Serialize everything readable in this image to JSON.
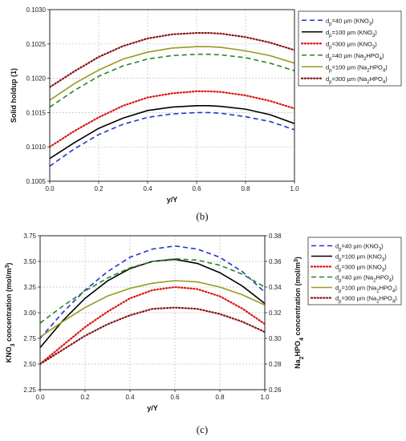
{
  "chart_data": [
    {
      "type": "line",
      "panel_label": "(b)",
      "xlabel": "y/Y",
      "ylabel": "Solid holdup (1)",
      "xlim": [
        0.0,
        1.0
      ],
      "ylim": [
        0.1005,
        0.103
      ],
      "x_ticks": [
        "0.0",
        "0.2",
        "0.4",
        "0.6",
        "0.8",
        "1.0"
      ],
      "y_ticks": [
        "0.1005",
        "0.1010",
        "0.1015",
        "0.1020",
        "0.1025",
        "0.1030"
      ],
      "grid": true,
      "legend_position": "right",
      "series": [
        {
          "name": "dp=40 µm (KNO3)",
          "legend": {
            "pre": "d",
            "sub1": "p",
            "mid": "=40 µm (KNO",
            "sub2": "3",
            "post": ")"
          },
          "color": "#2233cc",
          "dash": "dash",
          "x": [
            0.0,
            0.1,
            0.2,
            0.3,
            0.4,
            0.5,
            0.6,
            0.65,
            0.7,
            0.8,
            0.9,
            1.0
          ],
          "y": [
            0.10072,
            0.10097,
            0.10118,
            0.10133,
            0.10143,
            0.10148,
            0.1015,
            0.1015,
            0.10149,
            0.10144,
            0.10137,
            0.10125
          ]
        },
        {
          "name": "dp=100 µm (KNO3)",
          "legend": {
            "pre": "d",
            "sub1": "p",
            "mid": "=100 µm (KNO",
            "sub2": "3",
            "post": ")"
          },
          "color": "#000000",
          "dash": "solid",
          "x": [
            0.0,
            0.1,
            0.2,
            0.3,
            0.4,
            0.5,
            0.6,
            0.65,
            0.7,
            0.8,
            0.9,
            1.0
          ],
          "y": [
            0.10083,
            0.10106,
            0.10127,
            0.10142,
            0.10153,
            0.10158,
            0.1016,
            0.1016,
            0.10159,
            0.10155,
            0.10147,
            0.10134
          ]
        },
        {
          "name": "dp=300 µm (KNO3)",
          "legend": {
            "pre": "d",
            "sub1": "p",
            "mid": "=300 µm (KNO",
            "sub2": "3",
            "post": ")"
          },
          "color": "#dd1111",
          "dash": "dot",
          "x": [
            0.0,
            0.1,
            0.2,
            0.3,
            0.4,
            0.5,
            0.6,
            0.65,
            0.7,
            0.8,
            0.9,
            1.0
          ],
          "y": [
            0.101,
            0.10123,
            0.10143,
            0.1016,
            0.10172,
            0.10178,
            0.10181,
            0.10181,
            0.1018,
            0.10175,
            0.10167,
            0.10156
          ]
        },
        {
          "name": "dp=40 µm (Na2HPO4)",
          "legend": {
            "pre": "d",
            "sub1": "p",
            "mid": "=40 µm (Na",
            "sub2": "2",
            "post": "HPO",
            "sub3": "4",
            "post2": ")"
          },
          "color": "#228822",
          "dash": "dash",
          "x": [
            0.0,
            0.1,
            0.2,
            0.3,
            0.4,
            0.5,
            0.6,
            0.65,
            0.7,
            0.8,
            0.9,
            1.0
          ],
          "y": [
            0.10158,
            0.10182,
            0.10203,
            0.10218,
            0.10228,
            0.10233,
            0.10235,
            0.10235,
            0.10234,
            0.1023,
            0.10222,
            0.10211
          ]
        },
        {
          "name": "dp=100 µm (Na2HPO4)",
          "legend": {
            "pre": "d",
            "sub1": "p",
            "mid": "=100 µm (Na",
            "sub2": "2",
            "post": "HPO",
            "sub3": "4",
            "post2": ")"
          },
          "color": "#999922",
          "dash": "solid",
          "x": [
            0.0,
            0.1,
            0.2,
            0.3,
            0.4,
            0.5,
            0.6,
            0.65,
            0.7,
            0.8,
            0.9,
            1.0
          ],
          "y": [
            0.10168,
            0.10192,
            0.10212,
            0.10228,
            0.10238,
            0.10244,
            0.10246,
            0.10246,
            0.10245,
            0.1024,
            0.10233,
            0.10222
          ]
        },
        {
          "name": "dp=300 µm (Na2HPO4)",
          "legend": {
            "pre": "d",
            "sub1": "p",
            "mid": "=300 µm (Na",
            "sub2": "2",
            "post": "HPO",
            "sub3": "4",
            "post2": ")"
          },
          "color": "#881111",
          "dash": "dot",
          "x": [
            0.0,
            0.1,
            0.2,
            0.3,
            0.4,
            0.5,
            0.6,
            0.65,
            0.7,
            0.8,
            0.9,
            1.0
          ],
          "y": [
            0.10187,
            0.1021,
            0.10231,
            0.10247,
            0.10258,
            0.10264,
            0.10266,
            0.10266,
            0.10265,
            0.1026,
            0.10252,
            0.10241
          ]
        }
      ]
    },
    {
      "type": "line",
      "panel_label": "(c)",
      "xlabel": "y/Y",
      "ylabel": {
        "pre": "KNO",
        "sub": "3",
        "post": " concentration (mol/m",
        "sup": "3",
        "end": ")"
      },
      "y2label": {
        "pre": "Na",
        "sub": "2",
        "mid": "HPO",
        "sub2": "4",
        "post": " concentration (mol/m",
        "sup": "3",
        "end": ")"
      },
      "xlim": [
        0.0,
        1.0
      ],
      "ylim": [
        2.25,
        3.75
      ],
      "y2lim": [
        0.26,
        0.38
      ],
      "x_ticks": [
        "0.0",
        "0.2",
        "0.4",
        "0.6",
        "0.8",
        "1.0"
      ],
      "y_ticks": [
        "2.25",
        "2.50",
        "2.75",
        "3.00",
        "3.25",
        "3.50",
        "3.75"
      ],
      "y2_ticks": [
        "0.26",
        "0.28",
        "0.30",
        "0.32",
        "0.34",
        "0.36",
        "0.38"
      ],
      "grid": true,
      "legend_position": "right",
      "series": [
        {
          "name": "dp=40 µm (KNO3)",
          "axis": "left",
          "legend": {
            "pre": "d",
            "sub1": "p",
            "mid": "=40 µm (KNO",
            "sub2": "3",
            "post": ")"
          },
          "color": "#2233cc",
          "dash": "dash",
          "x": [
            0.0,
            0.1,
            0.2,
            0.3,
            0.4,
            0.5,
            0.6,
            0.7,
            0.8,
            0.9,
            1.0
          ],
          "y": [
            2.75,
            3.0,
            3.22,
            3.4,
            3.54,
            3.62,
            3.65,
            3.62,
            3.54,
            3.4,
            3.2
          ]
        },
        {
          "name": "dp=100 µm (KNO3)",
          "axis": "left",
          "legend": {
            "pre": "d",
            "sub1": "p",
            "mid": "=100 µm (KNO",
            "sub2": "3",
            "post": ")"
          },
          "color": "#000000",
          "dash": "solid",
          "x": [
            0.0,
            0.1,
            0.2,
            0.3,
            0.4,
            0.5,
            0.6,
            0.7,
            0.8,
            0.9,
            1.0
          ],
          "y": [
            2.66,
            2.92,
            3.14,
            3.31,
            3.43,
            3.5,
            3.52,
            3.48,
            3.39,
            3.26,
            3.09
          ]
        },
        {
          "name": "dp=300 µm (KNO3)",
          "axis": "left",
          "legend": {
            "pre": "d",
            "sub1": "p",
            "mid": "=300 µm (KNO",
            "sub2": "3",
            "post": ")"
          },
          "color": "#dd1111",
          "dash": "dot",
          "x": [
            0.0,
            0.1,
            0.2,
            0.3,
            0.4,
            0.5,
            0.6,
            0.7,
            0.8,
            0.9,
            1.0
          ],
          "y": [
            2.5,
            2.68,
            2.86,
            3.01,
            3.14,
            3.22,
            3.25,
            3.23,
            3.16,
            3.04,
            2.89
          ]
        },
        {
          "name": "dp=40 µm (Na2HPO4)",
          "axis": "right",
          "legend": {
            "pre": "d",
            "sub1": "p",
            "mid": "=40 µm (Na",
            "sub2": "2",
            "post": "HPO",
            "sub3": "4",
            "post2": ")"
          },
          "color": "#228822",
          "dash": "dash",
          "x": [
            0.0,
            0.1,
            0.2,
            0.3,
            0.4,
            0.5,
            0.6,
            0.7,
            0.8,
            0.9,
            1.0
          ],
          "y": [
            0.312,
            0.325,
            0.337,
            0.347,
            0.355,
            0.36,
            0.362,
            0.361,
            0.357,
            0.35,
            0.34
          ]
        },
        {
          "name": "dp=100 µm (Na2HPO4)",
          "axis": "right",
          "legend": {
            "pre": "d",
            "sub1": "p",
            "mid": "=100 µm (Na",
            "sub2": "2",
            "post": "HPO",
            "sub3": "4",
            "post2": ")"
          },
          "color": "#999922",
          "dash": "solid",
          "x": [
            0.0,
            0.1,
            0.2,
            0.3,
            0.4,
            0.5,
            0.6,
            0.7,
            0.8,
            0.9,
            1.0
          ],
          "y": [
            0.301,
            0.313,
            0.324,
            0.333,
            0.339,
            0.343,
            0.345,
            0.344,
            0.34,
            0.334,
            0.326
          ]
        },
        {
          "name": "dp=300 µm (Na2HPO4)",
          "axis": "right",
          "legend": {
            "pre": "d",
            "sub1": "p",
            "mid": "=300 µm (Na",
            "sub2": "2",
            "post": "HPO",
            "sub3": "4",
            "post2": ")"
          },
          "color": "#881111",
          "dash": "dot",
          "x": [
            0.0,
            0.1,
            0.2,
            0.3,
            0.4,
            0.5,
            0.6,
            0.7,
            0.8,
            0.9,
            1.0
          ],
          "y": [
            0.28,
            0.291,
            0.302,
            0.311,
            0.318,
            0.323,
            0.324,
            0.323,
            0.319,
            0.313,
            0.305
          ]
        }
      ]
    }
  ]
}
